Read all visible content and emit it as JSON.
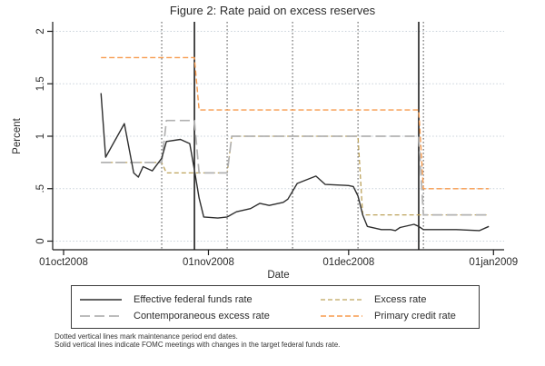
{
  "chart_data": {
    "type": "line",
    "title": "Figure 2: Rate paid on excess reserves",
    "xlabel": "Date",
    "ylabel": "Percent",
    "ylim": [
      0,
      2
    ],
    "xlim": [
      "2008-10-01",
      "2009-01-01"
    ],
    "grid": true,
    "y_ticks": [
      {
        "value": 0,
        "label": "0"
      },
      {
        "value": 0.5,
        "label": ".5"
      },
      {
        "value": 1,
        "label": "1"
      },
      {
        "value": 1.5,
        "label": "1.5"
      },
      {
        "value": 2,
        "label": "2"
      }
    ],
    "x_ticks": [
      {
        "date": "2008-10-01",
        "label": "01oct2008"
      },
      {
        "date": "2008-11-01",
        "label": "01nov2008"
      },
      {
        "date": "2008-12-01",
        "label": "01dec2008"
      },
      {
        "date": "2009-01-01",
        "label": "01jan2009"
      }
    ],
    "series": [
      {
        "name": "Effective federal funds rate",
        "color": "#2e2e2e",
        "dash": "",
        "width": 1.4,
        "points": [
          [
            "2008-10-09",
            1.41
          ],
          [
            "2008-10-10",
            0.8
          ],
          [
            "2008-10-14",
            1.12
          ],
          [
            "2008-10-16",
            0.65
          ],
          [
            "2008-10-17",
            0.61
          ],
          [
            "2008-10-18",
            0.71
          ],
          [
            "2008-10-20",
            0.67
          ],
          [
            "2008-10-22",
            0.79
          ],
          [
            "2008-10-23",
            0.95
          ],
          [
            "2008-10-26",
            0.97
          ],
          [
            "2008-10-28",
            0.93
          ],
          [
            "2008-10-29",
            0.68
          ],
          [
            "2008-10-30",
            0.41
          ],
          [
            "2008-10-31",
            0.23
          ],
          [
            "2008-11-03",
            0.22
          ],
          [
            "2008-11-05",
            0.23
          ],
          [
            "2008-11-07",
            0.28
          ],
          [
            "2008-11-10",
            0.31
          ],
          [
            "2008-11-12",
            0.36
          ],
          [
            "2008-11-14",
            0.34
          ],
          [
            "2008-11-17",
            0.37
          ],
          [
            "2008-11-18",
            0.4
          ],
          [
            "2008-11-20",
            0.55
          ],
          [
            "2008-11-24",
            0.62
          ],
          [
            "2008-11-26",
            0.54
          ],
          [
            "2008-12-01",
            0.53
          ],
          [
            "2008-12-02",
            0.52
          ],
          [
            "2008-12-03",
            0.43
          ],
          [
            "2008-12-04",
            0.25
          ],
          [
            "2008-12-05",
            0.14
          ],
          [
            "2008-12-08",
            0.11
          ],
          [
            "2008-12-10",
            0.11
          ],
          [
            "2008-12-11",
            0.1
          ],
          [
            "2008-12-12",
            0.13
          ],
          [
            "2008-12-15",
            0.16
          ],
          [
            "2008-12-16",
            0.14
          ],
          [
            "2008-12-17",
            0.11
          ],
          [
            "2008-12-24",
            0.11
          ],
          [
            "2008-12-29",
            0.1
          ],
          [
            "2008-12-31",
            0.14
          ]
        ]
      },
      {
        "name": "Contemporaneous excess rate",
        "color": "#b2b2b2",
        "dash": "11 5",
        "width": 1.7,
        "points": [
          [
            "2008-10-09",
            0.75
          ],
          [
            "2008-10-22",
            0.75
          ],
          [
            "2008-10-23",
            1.15
          ],
          [
            "2008-10-29",
            1.15
          ],
          [
            "2008-10-30",
            0.65
          ],
          [
            "2008-11-05",
            0.65
          ],
          [
            "2008-11-06",
            1.0
          ],
          [
            "2008-12-16",
            1.0
          ],
          [
            "2008-12-17",
            0.25
          ],
          [
            "2008-12-31",
            0.25
          ]
        ]
      },
      {
        "name": "Excess rate",
        "color": "#bda35c",
        "dash": "5 3",
        "width": 1.3,
        "points": [
          [
            "2008-10-09",
            0.75
          ],
          [
            "2008-10-22",
            0.75
          ],
          [
            "2008-10-23",
            0.65
          ],
          [
            "2008-11-05",
            0.65
          ],
          [
            "2008-11-06",
            1.0
          ],
          [
            "2008-12-03",
            1.0
          ],
          [
            "2008-12-04",
            0.25
          ],
          [
            "2008-12-31",
            0.25
          ]
        ]
      },
      {
        "name": "Primary credit rate",
        "color": "#f79b4e",
        "dash": "6 3",
        "width": 1.4,
        "points": [
          [
            "2008-10-09",
            1.75
          ],
          [
            "2008-10-29",
            1.75
          ],
          [
            "2008-10-30",
            1.25
          ],
          [
            "2008-12-16",
            1.25
          ],
          [
            "2008-12-17",
            0.5
          ],
          [
            "2008-12-31",
            0.5
          ]
        ]
      }
    ],
    "reference_lines": {
      "dotted_maintenance_period_end": [
        "2008-10-22",
        "2008-11-05",
        "2008-11-19",
        "2008-12-03",
        "2008-12-17"
      ],
      "solid_fomc_target_change": [
        "2008-10-29",
        "2008-12-16"
      ]
    }
  },
  "legend": {
    "position": "bottom",
    "items": [
      {
        "label": "Effective federal funds rate",
        "series_index": 0
      },
      {
        "label": "Excess rate",
        "series_index": 2
      },
      {
        "label": "Contemporaneous excess rate",
        "series_index": 1
      },
      {
        "label": "Primary credit rate",
        "series_index": 3
      }
    ]
  },
  "notes": [
    "Dotted vertical lines mark maintenance period end dates.",
    "Solid vertical lines indicate FOMC meetings with changes in the target federal funds rate."
  ],
  "colors": {
    "gridline": "#c9d2da",
    "dotted_ref": "#555555",
    "solid_ref": "#000000",
    "axis": "#1a1a1a",
    "text": "#2b2b2b"
  }
}
